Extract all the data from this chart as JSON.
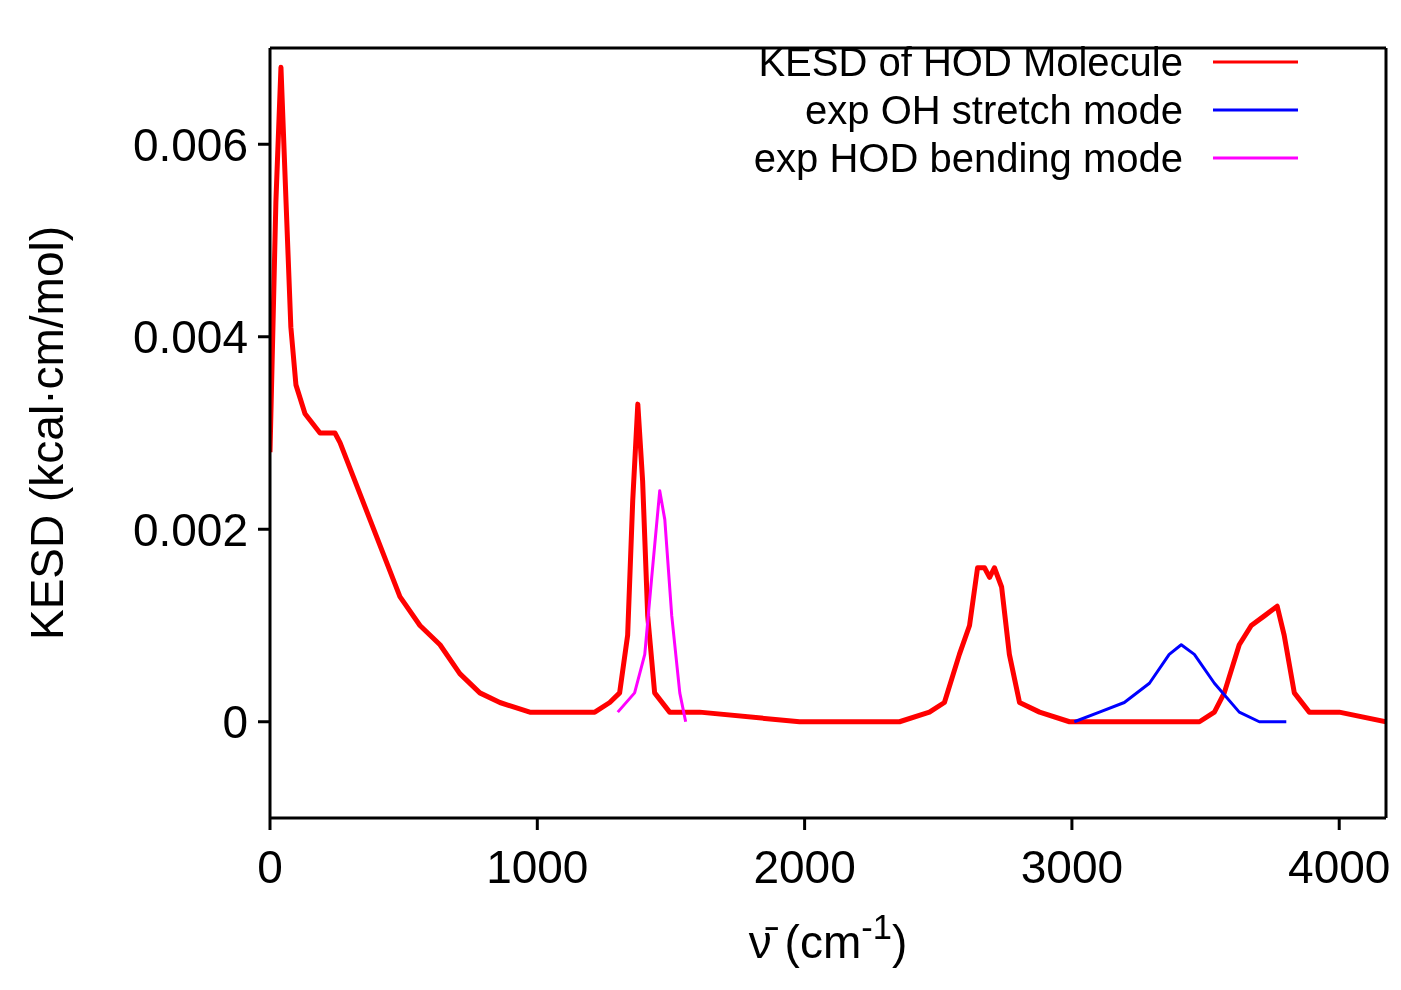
{
  "chart_data": {
    "type": "line",
    "xlabel": "ν̄ (cm$^{-1}$)",
    "ylabel": "KESD (kcal·cm/mol)",
    "xlim": [
      0,
      4175
    ],
    "ylim": [
      -0.001,
      0.007
    ],
    "xticks": [
      0,
      1000,
      2000,
      3000,
      4000
    ],
    "yticks": [
      0,
      0.002,
      0.004,
      0.006
    ],
    "grid": false,
    "legend": "top right",
    "marker": "none",
    "line_style": "solid",
    "series": [
      {
        "name": "KESD of HOD Molecule",
        "color": "#ff0000",
        "x": [
          0,
          22,
          41,
          60,
          78,
          97,
          131,
          187,
          243,
          262,
          318,
          374,
          430,
          486,
          561,
          636,
          710,
          785,
          860,
          972,
          1084,
          1140,
          1215,
          1271,
          1308,
          1338,
          1357,
          1376,
          1394,
          1413,
          1439,
          1495,
          1607,
          1981,
          2355,
          2467,
          2523,
          2579,
          2617,
          2647,
          2673,
          2692,
          2710,
          2737,
          2766,
          2804,
          2879,
          2991,
          3103,
          3290,
          3477,
          3533,
          3570,
          3626,
          3671,
          3720,
          3768,
          3794,
          3832,
          3888,
          4000,
          4175
        ],
        "values": [
          0.0028,
          0.0054,
          0.0068,
          0.0054,
          0.0041,
          0.0035,
          0.0032,
          0.003,
          0.003,
          0.0029,
          0.0025,
          0.0021,
          0.0017,
          0.0013,
          0.001,
          0.0008,
          0.0005,
          0.0003,
          0.0002,
          0.0001,
          0.0001,
          0.0001,
          0.0001,
          0.0002,
          0.0003,
          0.0009,
          0.0023,
          0.0033,
          0.0025,
          0.0011,
          0.0003,
          0.0001,
          0.0001,
          0,
          0,
          0.0001,
          0.0002,
          0.0007,
          0.001,
          0.0016,
          0.0016,
          0.0015,
          0.0016,
          0.0014,
          0.0007,
          0.0002,
          0.0001,
          0,
          0,
          0,
          0,
          0.0001,
          0.0003,
          0.0008,
          0.001,
          0.0011,
          0.0012,
          0.0009,
          0.0003,
          0.0001,
          0.0001,
          0
        ]
      },
      {
        "name": "exp OH stretch mode",
        "color": "#0000ff",
        "x": [
          3009,
          3103,
          3196,
          3290,
          3364,
          3409,
          3458,
          3533,
          3626,
          3701,
          3802
        ],
        "values": [
          0,
          0.0001,
          0.0002,
          0.0004,
          0.0007,
          0.0008,
          0.0007,
          0.0004,
          0.0001,
          0,
          0
        ]
      },
      {
        "name": "exp HOD bending mode",
        "color": "#ff00ff",
        "x": [
          1301,
          1364,
          1402,
          1428,
          1458,
          1477,
          1503,
          1533,
          1555
        ],
        "values": [
          0.0001,
          0.0003,
          0.0007,
          0.0015,
          0.0024,
          0.0021,
          0.0011,
          0.0003,
          0
        ]
      }
    ]
  }
}
